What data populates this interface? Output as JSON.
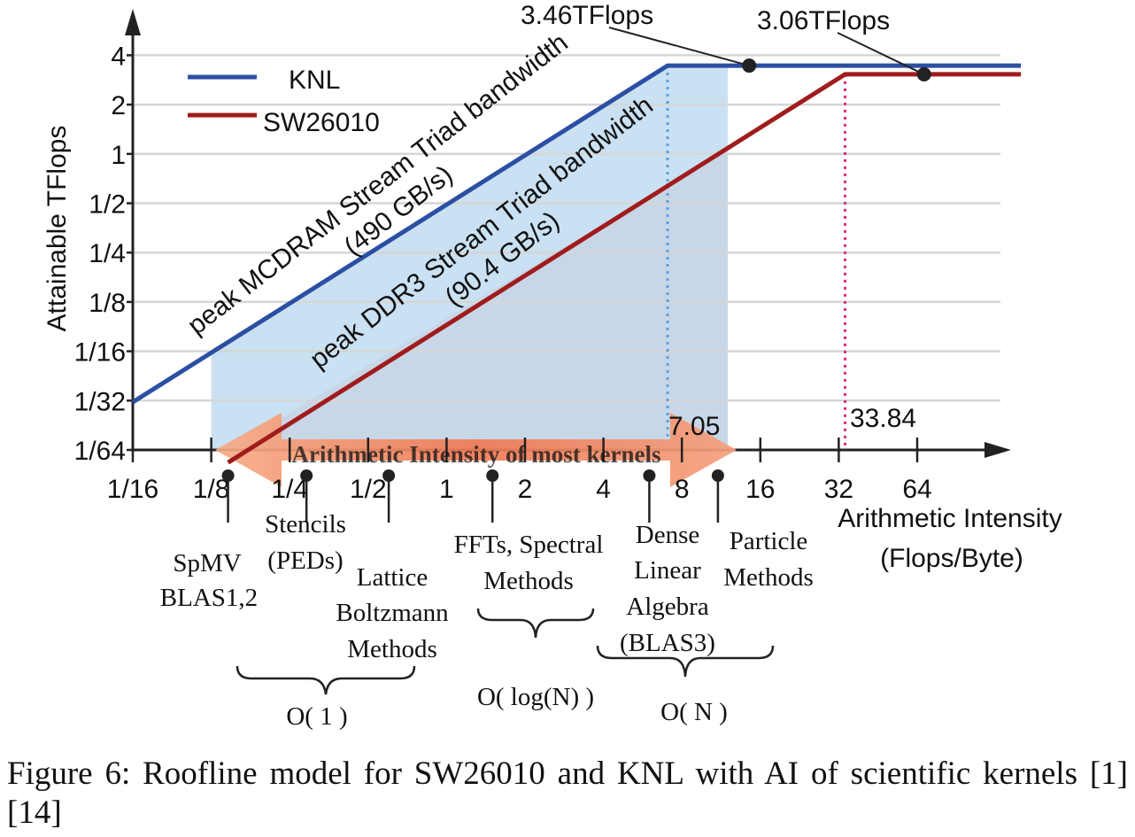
{
  "chart_data": {
    "type": "line",
    "title": "",
    "xlabel": "Arithmetic Intensity (Flops/Byte)",
    "xlabel_lines": [
      "Arithmetic Intensity",
      "(Flops/Byte)"
    ],
    "ylabel": "Attainable TFlops",
    "x_scale": "log2",
    "y_scale": "log2",
    "x_ticks": [
      {
        "value": 0.0625,
        "label": "1/16"
      },
      {
        "value": 0.125,
        "label": "1/8"
      },
      {
        "value": 0.25,
        "label": "1/4"
      },
      {
        "value": 0.5,
        "label": "1/2"
      },
      {
        "value": 1,
        "label": "1"
      },
      {
        "value": 2,
        "label": "2"
      },
      {
        "value": 4,
        "label": "4"
      },
      {
        "value": 8,
        "label": "8"
      },
      {
        "value": 16,
        "label": "16"
      },
      {
        "value": 32,
        "label": "32"
      },
      {
        "value": 64,
        "label": "64"
      }
    ],
    "y_ticks": [
      {
        "value": 0.015625,
        "label": "1/64"
      },
      {
        "value": 0.03125,
        "label": "1/32"
      },
      {
        "value": 0.0625,
        "label": "1/16"
      },
      {
        "value": 0.125,
        "label": "1/8"
      },
      {
        "value": 0.25,
        "label": "1/4"
      },
      {
        "value": 0.5,
        "label": "1/2"
      },
      {
        "value": 1,
        "label": "1"
      },
      {
        "value": 2,
        "label": "2"
      },
      {
        "value": 4,
        "label": "4"
      }
    ],
    "series": [
      {
        "name": "KNL",
        "color": "#2b4fa3",
        "bandwidth_GBs": 490,
        "peak_TFlops": 3.46,
        "ridge_ai": 7.05,
        "points": [
          [
            0.0625,
            0.0306
          ],
          [
            7.05,
            3.46
          ],
          [
            160,
            3.46
          ]
        ]
      },
      {
        "name": "SW26010",
        "color": "#a01c1c",
        "bandwidth_GBs": 90.4,
        "peak_TFlops": 3.06,
        "ridge_ai": 33.84,
        "points": [
          [
            0.145,
            0.0131
          ],
          [
            33.84,
            3.06
          ],
          [
            160,
            3.06
          ]
        ]
      }
    ],
    "legend": [
      {
        "label": "KNL",
        "color": "#2b4fa3"
      },
      {
        "label": "SW26010",
        "color": "#a01c1c"
      }
    ],
    "slope_labels": {
      "knl_line1": "peak MCDRAM Stream Triad bandwidth",
      "knl_line2": "(490 GB/s)",
      "sw_line1": "peak DDR3 Stream Triad bandwidth",
      "sw_line2": "(90.4 GB/s)"
    },
    "peak_labels": {
      "knl": "3.46TFlops",
      "sw": "3.06TFlops"
    },
    "ridge_labels": {
      "knl": "7.05",
      "sw": "33.84"
    },
    "arrow_label": "Arithmetic Intensity of most kernels",
    "kernels": [
      {
        "name": "SpMV BLAS1,2",
        "lines": [
          "SpMV",
          "BLAS1,2"
        ],
        "ai": 0.145
      },
      {
        "name": "Stencils (PEDs)",
        "lines": [
          "Stencils",
          "(PEDs)"
        ],
        "ai": 0.29
      },
      {
        "name": "Lattice Boltzmann Methods",
        "lines": [
          "Lattice",
          "Boltzmann",
          "Methods"
        ],
        "ai": 0.6
      },
      {
        "name": "FFTs, Spectral Methods",
        "lines": [
          "FFTs, Spectral",
          "Methods"
        ],
        "ai": 1.5
      },
      {
        "name": "Dense Linear Algebra (BLAS3)",
        "lines": [
          "Dense",
          "Linear",
          "Algebra",
          "(BLAS3)"
        ],
        "ai": 6.0
      },
      {
        "name": "Particle Methods",
        "lines": [
          "Particle",
          "Methods"
        ],
        "ai": 11.0
      }
    ],
    "complexity_groups": [
      {
        "label": "O( 1 )"
      },
      {
        "label": "O( log(N) )"
      },
      {
        "label": "O( N )"
      }
    ]
  },
  "caption": "Figure 6: Roofline model for SW26010 and KNL with AI of scientific kernels [1][14]"
}
